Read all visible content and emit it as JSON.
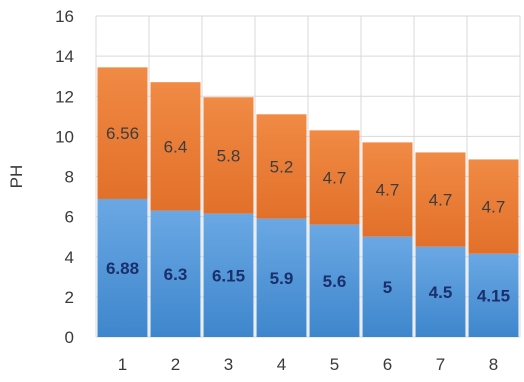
{
  "chart_data": {
    "type": "bar",
    "stacked": true,
    "categories": [
      "1",
      "2",
      "3",
      "4",
      "5",
      "6",
      "7",
      "8"
    ],
    "series": [
      {
        "values": [
          6.88,
          6.3,
          6.15,
          5.9,
          5.6,
          5,
          4.5,
          4.15
        ],
        "color": "#5b9bd5"
      },
      {
        "values": [
          6.56,
          6.4,
          5.8,
          5.2,
          4.7,
          4.7,
          4.7,
          4.7
        ],
        "color": "#ed7d31"
      }
    ],
    "title": "",
    "xlabel": "",
    "ylabel": "PH",
    "ylim": [
      0,
      16
    ],
    "yticks": [
      0,
      2,
      4,
      6,
      8,
      10,
      12,
      14,
      16
    ],
    "grid": true,
    "legend": "none"
  }
}
